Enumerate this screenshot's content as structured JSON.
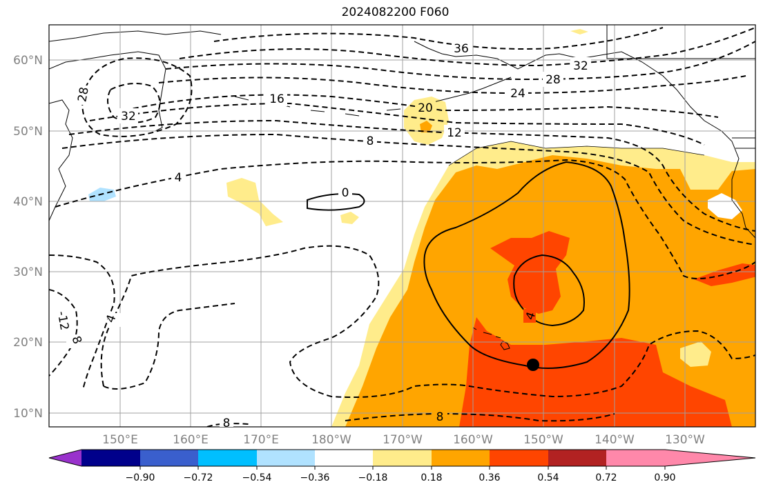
{
  "title": "2024082200 F060",
  "map": {
    "lat_labels": [
      "10°N",
      "20°N",
      "30°N",
      "40°N",
      "50°N",
      "60°N"
    ],
    "lon_labels": [
      "150°E",
      "160°E",
      "170°E",
      "180°W",
      "170°W",
      "160°W",
      "150°W",
      "140°W",
      "130°W"
    ],
    "contour_labels": [
      "36",
      "32",
      "28",
      "24",
      "20",
      "16",
      "12",
      "8",
      "4",
      "0",
      "4",
      "8",
      "32",
      "28",
      "-12",
      "8",
      "4",
      "8"
    ],
    "marker": "storm-center-dot"
  },
  "colorbar": {
    "ticks": [
      "−0.90",
      "−0.72",
      "−0.54",
      "−0.36",
      "−0.18",
      "0.18",
      "0.36",
      "0.54",
      "0.72",
      "0.90"
    ],
    "colors": [
      "#9932cc",
      "#00008b",
      "#3a5fcd",
      "#00bfff",
      "#b0e2ff",
      "#ffffff",
      "#ffec8b",
      "#ffa500",
      "#ff4500",
      "#b22222",
      "#ff88aa"
    ]
  },
  "colors": {
    "light_yellow": "#ffec8b",
    "orange": "#ffa500",
    "red_orange": "#ff4500",
    "light_blue": "#b0e2ff"
  }
}
